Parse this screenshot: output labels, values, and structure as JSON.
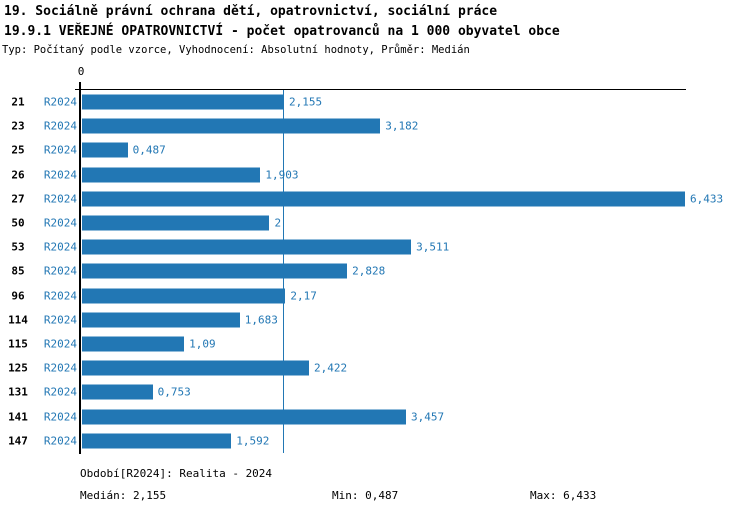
{
  "chart_data": {
    "type": "bar",
    "orientation": "horizontal",
    "title": "19. Sociálně právní ochrana dětí, opatrovnictví, sociální práce",
    "subtitle": "19.9.1 VEŘEJNÉ OPATROVNICTVÍ - počet opatrovanců na 1 000 obyvatel obce",
    "type_line": "Typ: Počítaný podle vzorce, Vyhodnocení: Absolutní hodnoty, Průměr: Medián",
    "series_name": "R2024",
    "categories": [
      "21",
      "23",
      "25",
      "26",
      "27",
      "50",
      "53",
      "85",
      "96",
      "114",
      "115",
      "125",
      "131",
      "141",
      "147"
    ],
    "values": [
      2.155,
      3.182,
      0.487,
      1.903,
      6.433,
      2.0,
      3.511,
      2.828,
      2.17,
      1.683,
      1.09,
      2.422,
      0.753,
      3.457,
      1.592
    ],
    "value_labels": [
      "2,155",
      "3,182",
      "0,487",
      "1,903",
      "6,433",
      "2",
      "3,511",
      "2,828",
      "2,17",
      "1,683",
      "1,09",
      "2,422",
      "0,753",
      "3,457",
      "1,592"
    ],
    "xlim": [
      0,
      6.433
    ],
    "x_axis_zero_label": "0",
    "median_value": 2.155,
    "grid": false,
    "legend_position": "none",
    "bar_color": "#2277b4",
    "median_line_color": "#2277b4",
    "label_color": "#2277b4",
    "axis_color": "#000000"
  },
  "footer": {
    "period": "Období[R2024]: Realita - 2024",
    "median": "Medián: 2,155",
    "min": "Min: 0,487",
    "max": "Max: 6,433"
  }
}
